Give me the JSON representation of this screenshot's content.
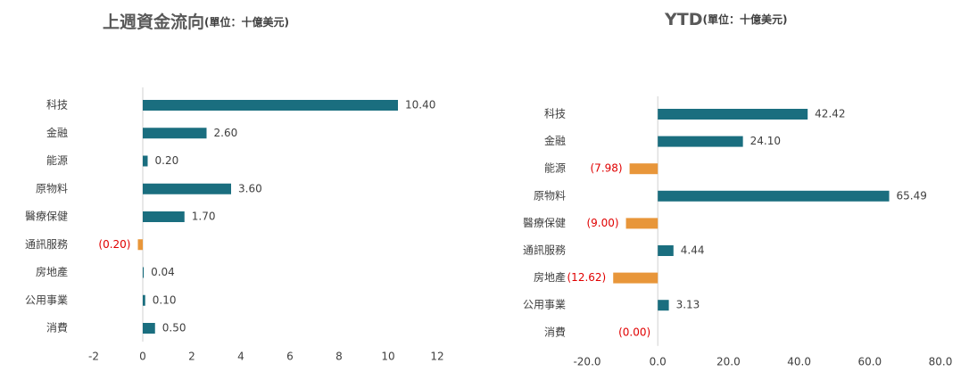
{
  "chart_data": [
    {
      "type": "bar",
      "orientation": "horizontal",
      "title": "上週資金流向",
      "subtitle": "(單位：十億美元)",
      "categories": [
        "科技",
        "金融",
        "能源",
        "原物料",
        "醫療保健",
        "通訊服務",
        "房地產",
        "公用事業",
        "消費"
      ],
      "values": [
        10.4,
        2.6,
        0.2,
        3.6,
        1.7,
        -0.2,
        0.04,
        0.1,
        0.5
      ],
      "value_labels": [
        "10.40",
        "2.60",
        "0.20",
        "3.60",
        "1.70",
        "(0.20)",
        "0.04",
        "0.10",
        "0.50"
      ],
      "color": "#1a6e7f",
      "negative_color": "#e8963a",
      "negative_label_color": "#e00000",
      "xlim": [
        -2,
        12
      ],
      "xticks": [
        -2,
        0,
        2,
        4,
        6,
        8,
        10,
        12
      ],
      "grid": false
    },
    {
      "type": "bar",
      "orientation": "horizontal",
      "title": "YTD",
      "subtitle": "(單位：十億美元)",
      "categories": [
        "科技",
        "金融",
        "能源",
        "原物料",
        "醫療保健",
        "通訊服務",
        "房地產",
        "公用事業",
        "消費"
      ],
      "values": [
        42.42,
        24.1,
        -7.98,
        65.49,
        -9.0,
        4.44,
        -12.62,
        3.13,
        0.0
      ],
      "value_labels": [
        "42.42",
        "24.10",
        "(7.98)",
        "65.49",
        "(9.00)",
        "4.44",
        "(12.62)",
        "3.13",
        "(0.00)"
      ],
      "color": "#1a6e7f",
      "negative_color": "#e8963a",
      "negative_label_color": "#e00000",
      "xlim": [
        -20,
        80
      ],
      "xticks": [
        {
          "value": -20,
          "label": "-20.0"
        },
        {
          "value": 0,
          "label": "0.0"
        },
        {
          "value": 20,
          "label": "20.0"
        },
        {
          "value": 40,
          "label": "40.0"
        },
        {
          "value": 60,
          "label": "60.0"
        },
        {
          "value": 80,
          "label": "80.0"
        }
      ],
      "grid": false
    }
  ]
}
